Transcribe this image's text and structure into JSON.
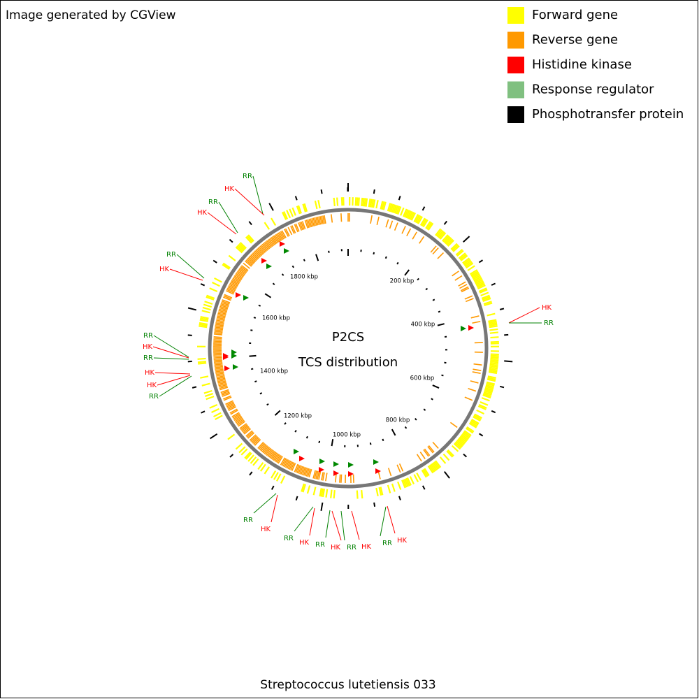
{
  "header": {
    "title": "Image generated by CGView"
  },
  "legend": [
    {
      "label": "Forward gene",
      "color": "#ffff00"
    },
    {
      "label": "Reverse gene",
      "color": "#ff9900"
    },
    {
      "label": "Histidine kinase",
      "color": "#ff0000"
    },
    {
      "label": "Response regulator",
      "color": "#80c080"
    },
    {
      "label": "Phosphotransfer protein",
      "color": "#000000"
    }
  ],
  "center": {
    "title": "P2CS",
    "subtitle": "TCS distribution"
  },
  "ruler_labels": [
    "200 kbp",
    "400 kbp",
    "600 kbp",
    "800 kbp",
    "1000 kbp",
    "1200 kbp",
    "1400 kbp",
    "1600 kbp",
    "1800 kbp"
  ],
  "feature_labels": [
    {
      "text": "RR",
      "color": "#008000"
    },
    {
      "text": "HK",
      "color": "#ff0000"
    },
    {
      "text": "RR",
      "color": "#008000"
    },
    {
      "text": "HK",
      "color": "#ff0000"
    },
    {
      "text": "RR",
      "color": "#008000"
    },
    {
      "text": "HK",
      "color": "#ff0000"
    },
    {
      "text": "HK",
      "color": "#ff0000"
    },
    {
      "text": "RR",
      "color": "#008000"
    },
    {
      "text": "RR",
      "color": "#008000"
    },
    {
      "text": "HK",
      "color": "#ff0000"
    },
    {
      "text": "RR",
      "color": "#008000"
    },
    {
      "text": "HK",
      "color": "#ff0000"
    },
    {
      "text": "HK",
      "color": "#ff0000"
    },
    {
      "text": "RR",
      "color": "#008000"
    },
    {
      "text": "RR",
      "color": "#008000"
    },
    {
      "text": "HK",
      "color": "#ff0000"
    },
    {
      "text": "RR",
      "color": "#008000"
    },
    {
      "text": "HK",
      "color": "#ff0000"
    },
    {
      "text": "RR",
      "color": "#008000"
    },
    {
      "text": "HK",
      "color": "#ff0000"
    },
    {
      "text": "RR",
      "color": "#008000"
    },
    {
      "text": "HK",
      "color": "#ff0000"
    },
    {
      "text": "RR",
      "color": "#008000"
    },
    {
      "text": "HK",
      "color": "#ff0000"
    }
  ],
  "caption": "Streptococcus lutetiensis 033"
}
